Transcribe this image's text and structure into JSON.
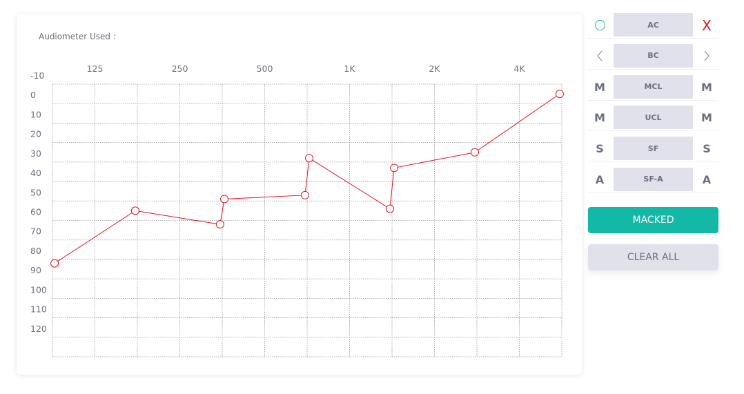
{
  "audiometer_label": "Audiometer Used :",
  "panel": {
    "rows": [
      {
        "button": "AC",
        "left_symbol": "circle-icon",
        "right_symbol": "X"
      },
      {
        "button": "BC",
        "left_symbol": "<",
        "right_symbol": ">"
      },
      {
        "button": "MCL",
        "left_symbol": "M",
        "right_symbol": "M"
      },
      {
        "button": "UCL",
        "left_symbol": "M",
        "right_symbol": "M"
      },
      {
        "button": "SF",
        "left_symbol": "S",
        "right_symbol": "S"
      },
      {
        "button": "SF-A",
        "left_symbol": "A",
        "right_symbol": "A"
      }
    ]
  },
  "buttons": {
    "masked": "MACKED",
    "clear_all": "CLEAR ALL"
  },
  "colors": {
    "accent": "#14b8a6",
    "series": "#e5121a",
    "button_bg": "#e1e1ec",
    "text": "#6c6f80"
  },
  "chart_data": {
    "type": "line",
    "title": "",
    "xlabel": "",
    "ylabel": "",
    "x_tick_labels": [
      "125",
      "250",
      "500",
      "1K",
      "2K",
      "4K"
    ],
    "y_tick_labels": [
      "-10",
      "0",
      "10",
      "20",
      "30",
      "40",
      "50",
      "60",
      "70",
      "80",
      "90",
      "100",
      "110",
      "120"
    ],
    "ylim": [
      -10,
      130
    ],
    "y_reversed": true,
    "grid": true,
    "series": [
      {
        "color": "#e5121a",
        "marker": "open-circle",
        "points": [
          {
            "x": "125-",
            "y": 82
          },
          {
            "x": "125+",
            "y": 55
          },
          {
            "x": "250+",
            "y": 62
          },
          {
            "x": "500-",
            "y": 49
          },
          {
            "x": "500+",
            "y": 47
          },
          {
            "x": "1K-",
            "y": 28
          },
          {
            "x": "1K+",
            "y": 54
          },
          {
            "x": "2K-",
            "y": 33
          },
          {
            "x": "2K+",
            "y": 25
          },
          {
            "x": "4K+",
            "y": -5
          }
        ]
      }
    ]
  }
}
